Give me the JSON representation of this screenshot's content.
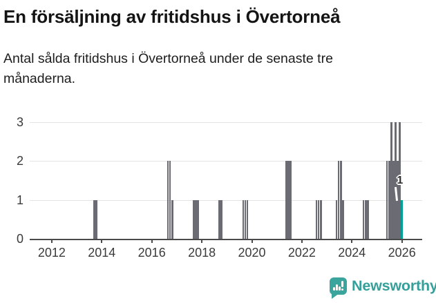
{
  "header": {
    "title": "En försäljning av fritidshus i Övertorneå",
    "subtitle_lines": [
      "Antal sålda fritidshus i Övertorneå under de senaste tre",
      "månaderna."
    ]
  },
  "branding": {
    "name": "Newsworthy",
    "color": "#35a09a",
    "icon": "newsworthy-speech-bubble-barchart-icon"
  },
  "chart_data": {
    "type": "bar",
    "title": "En försäljning av fritidshus i Övertorneå",
    "subtitle": "Antal sålda fritidshus i Övertorneå under de senaste tre månaderna.",
    "xlabel": "",
    "ylabel": "",
    "ylim": [
      0,
      3
    ],
    "yticks": [
      0,
      1,
      2,
      3
    ],
    "xticks": [
      2012,
      2014,
      2016,
      2018,
      2020,
      2022,
      2024,
      2026
    ],
    "x_range": [
      2011.12,
      2026.81
    ],
    "grid": true,
    "bar_width_years": 0.072,
    "colors": {
      "bar": "#6b6b73",
      "current_bar": "#00a099",
      "gridline": "#e3e3e3",
      "axis": "#4a4a4a"
    },
    "annotation": {
      "text": "1",
      "t": 2025.965,
      "v": 1
    },
    "bars": [
      {
        "t": 2013.66,
        "v": 1
      },
      {
        "t": 2013.745,
        "v": 1
      },
      {
        "t": 2016.61,
        "v": 2
      },
      {
        "t": 2016.695,
        "v": 2
      },
      {
        "t": 2016.78,
        "v": 1
      },
      {
        "t": 2017.64,
        "v": 1
      },
      {
        "t": 2017.725,
        "v": 1
      },
      {
        "t": 2017.81,
        "v": 1
      },
      {
        "t": 2018.66,
        "v": 1
      },
      {
        "t": 2018.745,
        "v": 1
      },
      {
        "t": 2019.62,
        "v": 1
      },
      {
        "t": 2019.705,
        "v": 1
      },
      {
        "t": 2019.79,
        "v": 1
      },
      {
        "t": 2021.34,
        "v": 2
      },
      {
        "t": 2021.425,
        "v": 2
      },
      {
        "t": 2021.51,
        "v": 2
      },
      {
        "t": 2022.55,
        "v": 1
      },
      {
        "t": 2022.635,
        "v": 1
      },
      {
        "t": 2022.72,
        "v": 1
      },
      {
        "t": 2023.35,
        "v": 1
      },
      {
        "t": 2023.435,
        "v": 2
      },
      {
        "t": 2023.52,
        "v": 2
      },
      {
        "t": 2023.605,
        "v": 1
      },
      {
        "t": 2024.43,
        "v": 1
      },
      {
        "t": 2024.515,
        "v": 1
      },
      {
        "t": 2024.6,
        "v": 1
      },
      {
        "t": 2025.37,
        "v": 2
      },
      {
        "t": 2025.455,
        "v": 2
      },
      {
        "t": 2025.54,
        "v": 3
      },
      {
        "t": 2025.625,
        "v": 2
      },
      {
        "t": 2025.71,
        "v": 3
      },
      {
        "t": 2025.795,
        "v": 2
      },
      {
        "t": 2025.88,
        "v": 3
      },
      {
        "t": 2025.965,
        "v": 1,
        "current": true
      }
    ]
  }
}
